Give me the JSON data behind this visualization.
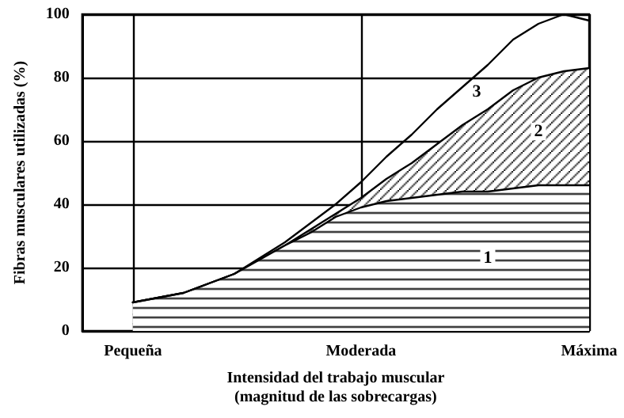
{
  "chart_data": {
    "type": "area",
    "xlabel": "Intensidad del trabajo muscular\n(magnitud de las sobrecargas)",
    "ylabel": "Fibras musculares utilizadas (%)",
    "categories": [
      null,
      null,
      "Pequeña",
      null,
      null,
      null,
      null,
      null,
      null,
      null,
      null,
      "Moderada",
      null,
      null,
      null,
      null,
      null,
      null,
      null,
      null,
      "Máxima"
    ],
    "ylim": [
      0,
      100
    ],
    "yticks": [
      0,
      20,
      40,
      60,
      80,
      100
    ],
    "grid": true,
    "marker": "none",
    "line_style": "solid",
    "series": [
      {
        "name": "2",
        "color": "#000000",
        "values": [
          null,
          null,
          9,
          10.5,
          12,
          15,
          18,
          22.5,
          27,
          32,
          37,
          42,
          48,
          53,
          59,
          65,
          70,
          76,
          80,
          82,
          83
        ]
      },
      {
        "name": "1",
        "color": "#000000",
        "values": [
          null,
          null,
          9,
          10.5,
          12,
          15,
          18,
          22.5,
          27,
          31,
          36,
          39,
          41,
          42,
          43,
          44,
          44,
          45,
          46,
          46,
          46
        ]
      },
      {
        "name": "3",
        "type": "line",
        "color": "#000000",
        "values": [
          null,
          null,
          9,
          10.5,
          12,
          15,
          18,
          23,
          28,
          34,
          40,
          47,
          55,
          62,
          70,
          77,
          84,
          92,
          97,
          100,
          98
        ]
      }
    ]
  }
}
